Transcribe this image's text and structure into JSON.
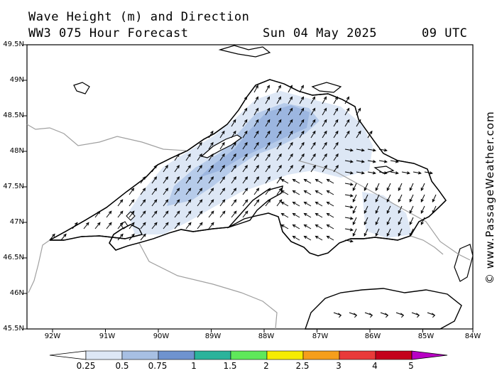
{
  "header": {
    "title": "Wave Height (m) and Direction",
    "subtitle": "WW3 075 Hour Forecast",
    "date": "Sun 04 May 2025",
    "time": "09 UTC"
  },
  "credit": "© www.PassageWeather.com",
  "map": {
    "lat_labels": [
      "49.5N",
      "49N",
      "48.5N",
      "48N",
      "47.5N",
      "47N",
      "46.5N",
      "46N",
      "45.5N"
    ],
    "lon_labels": [
      "92W",
      "91W",
      "90W",
      "89W",
      "88W",
      "87W",
      "86W",
      "85W",
      "84W"
    ],
    "colors": {
      "land": "#ffffff",
      "coast": "#000000",
      "border": "#a0a0a0",
      "wave_lt": "#dde7f5",
      "wave_md": "#b6cbea",
      "wave_dk": "#9cb6e0"
    }
  },
  "legend": {
    "labels": [
      "0.25",
      "0.5",
      "0.75",
      "1",
      "1.5",
      "2",
      "2.5",
      "3",
      "4",
      "5"
    ],
    "colors": [
      "#ffffff",
      "#dde7f5",
      "#a7bfe3",
      "#6f93cf",
      "#2bb39b",
      "#5fe85a",
      "#f6ec00",
      "#f59e1b",
      "#e93a3a",
      "#c4001c",
      "#b800c4"
    ]
  }
}
